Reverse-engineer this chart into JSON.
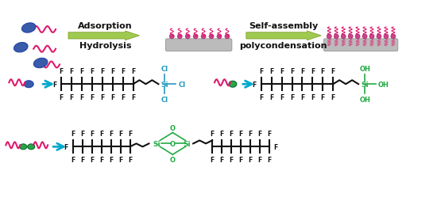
{
  "bg_color": "#ffffff",
  "arrow_color_green": "#90c030",
  "arrow_color_cyan": "#00aacc",
  "pink_color": "#e0196e",
  "blue_dot_color": "#3a5aaa",
  "green_dot_color": "#22aa44",
  "black_color": "#111111",
  "cyan_text_color": "#2299bb",
  "green_text_color": "#22aa44",
  "gray_color": "#aaaaaa",
  "text_adsorption": "Adsorption",
  "text_hydrolysis": "Hydrolysis",
  "text_selfassembly": "Self-assembly",
  "text_polycondensation": "polycondensation",
  "figsize": [
    5.5,
    2.55
  ],
  "dpi": 100
}
